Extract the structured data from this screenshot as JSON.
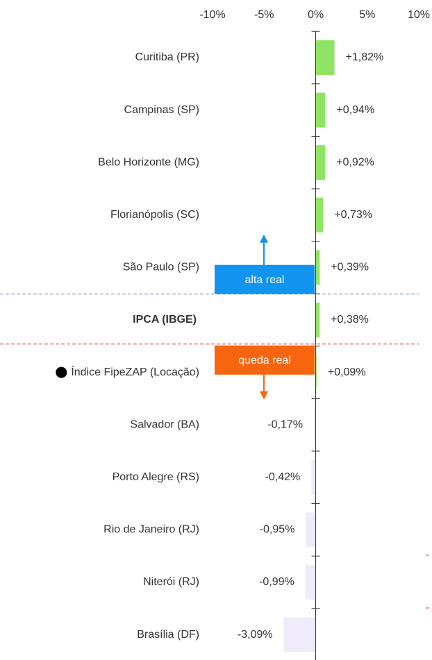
{
  "chart_data": {
    "type": "bar",
    "orientation": "horizontal",
    "categories": [
      "Curitiba (PR)",
      "Campinas (SP)",
      "Belo Horizonte (MG)",
      "Florianópolis (SC)",
      "São Paulo (SP)",
      "IPCA (IBGE)",
      "Índice FipeZAP (Locação)",
      "Salvador (BA)",
      "Porto Alegre (RS)",
      "Rio de Janeiro (RJ)",
      "Niterói (RJ)",
      "Brasília (DF)"
    ],
    "values": [
      1.82,
      0.94,
      0.92,
      0.73,
      0.39,
      0.38,
      0.09,
      -0.17,
      -0.42,
      -0.95,
      -0.99,
      -3.09
    ],
    "value_labels": [
      "+1,82%",
      "+0,94%",
      "+0,92%",
      "+0,73%",
      "+0,39%",
      "+0,38%",
      "+0,09%",
      "-0,17%",
      "-0,42%",
      "-0,95%",
      "-0,99%",
      "-3,09%"
    ],
    "positive_color": "#8fe463",
    "negative_color": "#f0ebfa",
    "highlight_category": "IPCA (IBGE)",
    "marker_category": "Índice FipeZAP (Locação)",
    "xlim": [
      -10,
      10
    ],
    "xticks": [
      {
        "value": -10,
        "label": "-10%"
      },
      {
        "value": -5,
        "label": "-5%"
      },
      {
        "value": 0,
        "label": "0%"
      },
      {
        "value": 5,
        "label": "5%"
      },
      {
        "value": 10,
        "label": "10%"
      }
    ],
    "annotations": [
      {
        "text": "alta real",
        "color": "#1094f0",
        "line_color": "#6f8fb0",
        "direction": "up"
      },
      {
        "text": "queda real",
        "color": "#f7650f",
        "line_color": "#e0302a",
        "direction": "down"
      }
    ]
  }
}
